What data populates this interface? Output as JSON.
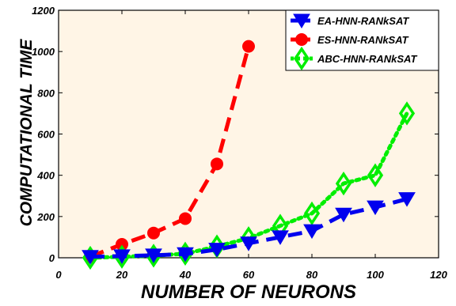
{
  "chart_data": {
    "type": "line",
    "title": "",
    "xlabel": "NUMBER OF NEURONS",
    "ylabel": "COMPUTATIONAL TIME",
    "xlim": [
      0,
      120
    ],
    "ylim": [
      0,
      1200
    ],
    "xticks": [
      0,
      20,
      40,
      60,
      80,
      100,
      120
    ],
    "yticks": [
      0,
      200,
      400,
      600,
      800,
      1000,
      1200
    ],
    "grid": false,
    "legend_position": "top-right",
    "background_color": "#fff5e6",
    "series": [
      {
        "name": "EA-HNN-RANkSAT",
        "color": "#0000ee",
        "marker": "triangle-down",
        "line_style": "dashed",
        "x": [
          10,
          20,
          30,
          40,
          50,
          60,
          70,
          80,
          90,
          100,
          110
        ],
        "y": [
          5,
          8,
          12,
          18,
          40,
          70,
          100,
          130,
          210,
          245,
          285
        ]
      },
      {
        "name": "ES-HNN-RANkSAT",
        "color": "#ff0000",
        "marker": "circle",
        "line_style": "dashed",
        "x": [
          10,
          20,
          30,
          40,
          50,
          60
        ],
        "y": [
          5,
          65,
          120,
          190,
          455,
          1025
        ]
      },
      {
        "name": "ABC-HNN-RANkSAT",
        "color": "#00ee00",
        "marker": "diamond",
        "line_style": "dotted",
        "x": [
          10,
          20,
          30,
          40,
          50,
          60,
          70,
          80,
          90,
          100,
          110
        ],
        "y": [
          0,
          5,
          10,
          20,
          55,
          95,
          155,
          215,
          360,
          400,
          700
        ]
      }
    ]
  }
}
